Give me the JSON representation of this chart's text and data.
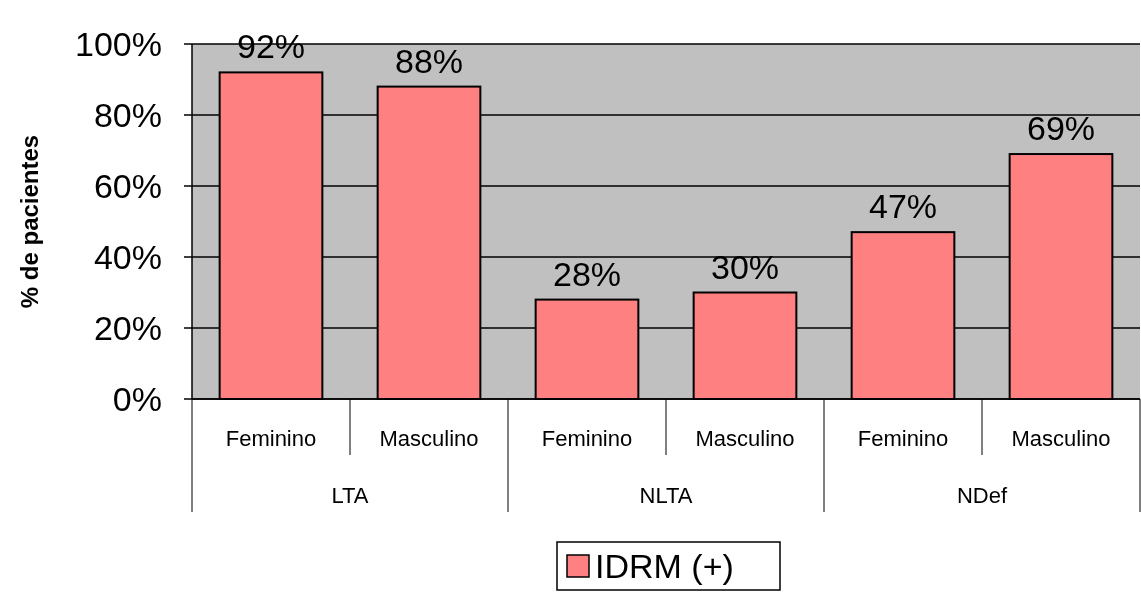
{
  "chart_data": {
    "type": "bar",
    "ylabel": "% de pacientes",
    "categories": [
      "Feminino",
      "Masculino",
      "Feminino",
      "Masculino",
      "Feminino",
      "Masculino"
    ],
    "series": [
      {
        "name": "IDRM (+)",
        "color": "#ff8080",
        "values": [
          92,
          88,
          28,
          30,
          47,
          69
        ],
        "value_labels": [
          "92%",
          "88%",
          "28%",
          "30%",
          "47%",
          "69%"
        ]
      }
    ],
    "annotations": [
      "LTA",
      "NLTA",
      "NDef"
    ],
    "ylim": [
      0,
      100
    ],
    "yticks": [
      {
        "value": 0,
        "label": "0%"
      },
      {
        "value": 20,
        "label": "20%"
      },
      {
        "value": 40,
        "label": "40%"
      },
      {
        "value": 60,
        "label": "60%"
      },
      {
        "value": 80,
        "label": "80%"
      },
      {
        "value": 100,
        "label": "100%"
      }
    ],
    "grid": "y",
    "legend": "bottom"
  }
}
